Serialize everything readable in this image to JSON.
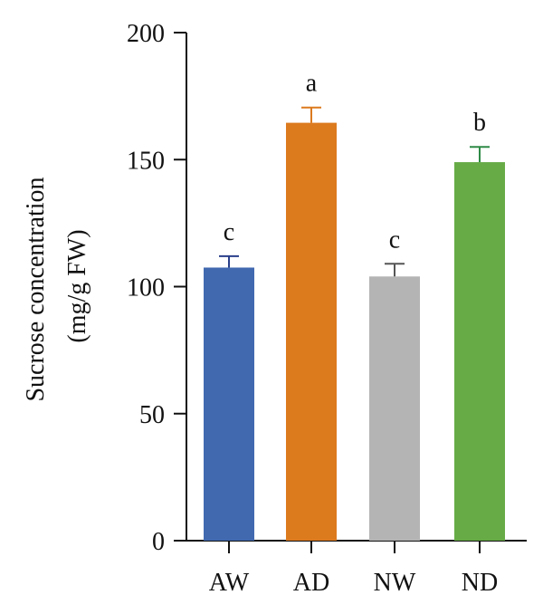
{
  "chart_data": {
    "type": "bar",
    "title": "",
    "xlabel": "",
    "ylabel_lines": [
      "Sucrose concentration",
      "(mg/g FW)"
    ],
    "ylim": [
      0,
      200
    ],
    "yticks": [
      0,
      50,
      100,
      150,
      200
    ],
    "categories": [
      "AW",
      "AD",
      "NW",
      "ND"
    ],
    "values": [
      107.5,
      164.5,
      104,
      149
    ],
    "errors": [
      4.5,
      6,
      5,
      6
    ],
    "significance": [
      "c",
      "a",
      "c",
      "b"
    ],
    "colors": [
      "#4169b0",
      "#dc7a1e",
      "#b4b4b4",
      "#66ab46"
    ],
    "error_colors": [
      "#2a3f8a",
      "#dc7a1e",
      "#555555",
      "#2f8a46"
    ],
    "grid": false,
    "legend": "none"
  }
}
